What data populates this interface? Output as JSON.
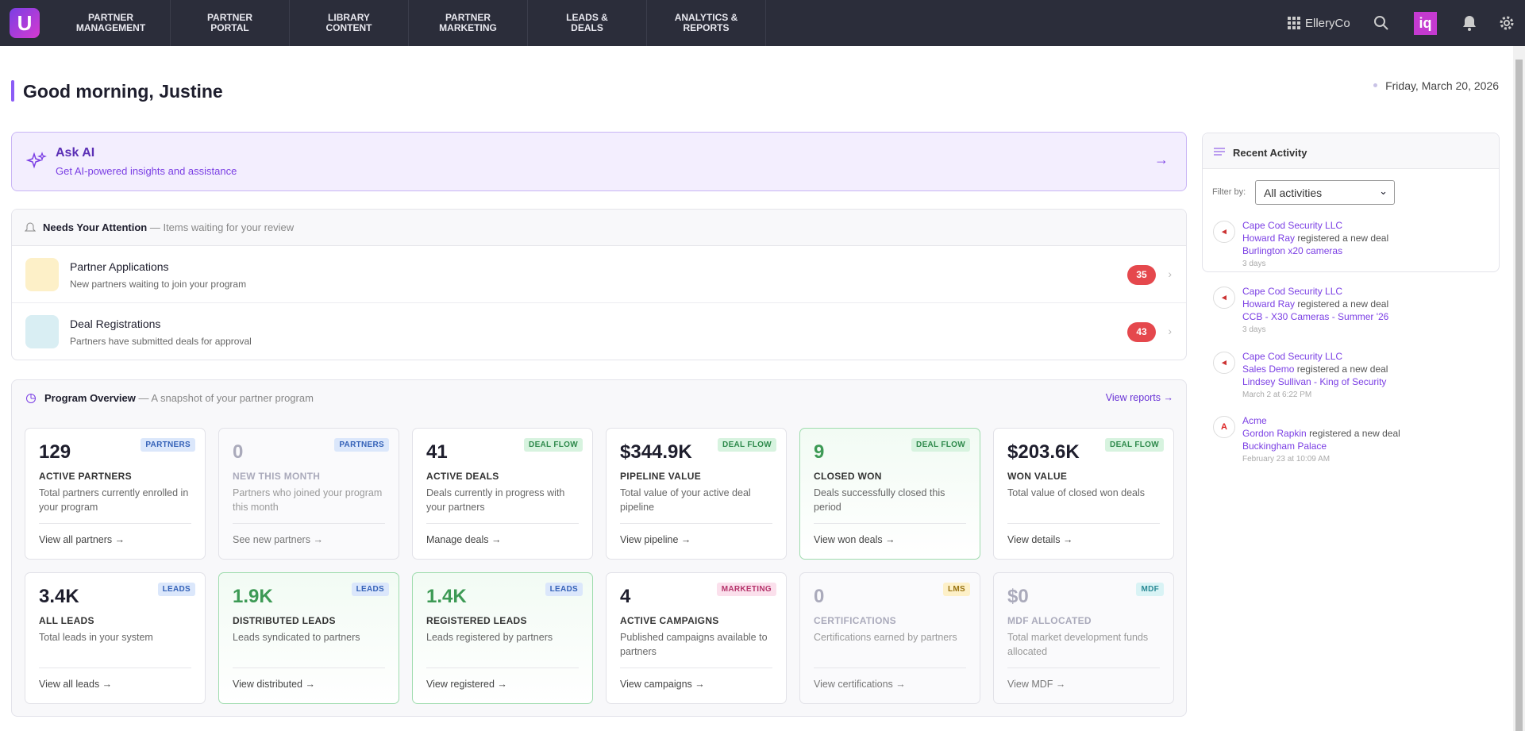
{
  "nav": {
    "items": [
      "PARTNER MANAGEMENT",
      "PARTNER PORTAL",
      "LIBRARY CONTENT",
      "PARTNER MARKETING",
      "LEADS & DEALS",
      "ANALYTICS & REPORTS"
    ],
    "org": "ElleryCo"
  },
  "greeting": "Good morning, Justine",
  "date": "Friday, March 20, 2026",
  "ask_ai": {
    "title": "Ask AI",
    "subtitle": "Get AI-powered insights and assistance"
  },
  "attention": {
    "title": "Needs Your Attention",
    "subtitle": "— Items waiting for your review",
    "items": [
      {
        "title": "Partner Applications",
        "desc": "New partners waiting to join your program",
        "count": 35
      },
      {
        "title": "Deal Registrations",
        "desc": "Partners have submitted deals for approval",
        "count": 43
      }
    ]
  },
  "overview": {
    "title": "Program Overview",
    "subtitle": "— A snapshot of your partner program",
    "link": "View reports →",
    "cards": [
      {
        "value": "129",
        "label": "ACTIVE PARTNERS",
        "badge": "PARTNERS",
        "desc": "Total partners currently enrolled in your program",
        "link": "View all partners →"
      },
      {
        "value": "0",
        "label": "NEW THIS MONTH",
        "badge": "PARTNERS",
        "desc": "Partners who joined your program this month",
        "link": "See new partners →"
      },
      {
        "value": "41",
        "label": "ACTIVE DEALS",
        "badge": "DEAL FLOW",
        "desc": "Deals currently in progress with your partners",
        "link": "Manage deals →"
      },
      {
        "value": "$344.9K",
        "label": "PIPELINE VALUE",
        "badge": "DEAL FLOW",
        "desc": "Total value of your active deal pipeline",
        "link": "View pipeline →"
      },
      {
        "value": "9",
        "label": "CLOSED WON",
        "badge": "DEAL FLOW",
        "desc": "Deals successfully closed this period",
        "link": "View won deals →"
      },
      {
        "value": "$203.6K",
        "label": "WON VALUE",
        "badge": "DEAL FLOW",
        "desc": "Total value of closed won deals",
        "link": "View details →"
      },
      {
        "value": "3.4K",
        "label": "ALL LEADS",
        "badge": "LEADS",
        "desc": "Total leads in your system",
        "link": "View all leads →"
      },
      {
        "value": "1.9K",
        "label": "DISTRIBUTED LEADS",
        "badge": "LEADS",
        "desc": "Leads syndicated to partners",
        "link": "View distributed →"
      },
      {
        "value": "1.4K",
        "label": "REGISTERED LEADS",
        "badge": "LEADS",
        "desc": "Leads registered by partners",
        "link": "View registered →"
      },
      {
        "value": "4",
        "label": "ACTIVE CAMPAIGNS",
        "badge": "MARKETING",
        "desc": "Published campaigns available to partners",
        "link": "View campaigns →"
      },
      {
        "value": "0",
        "label": "CERTIFICATIONS",
        "badge": "LMS",
        "desc": "Certifications earned by partners",
        "link": "View certifications →"
      },
      {
        "value": "$0",
        "label": "MDF ALLOCATED",
        "badge": "MDF",
        "desc": "Total market development funds allocated",
        "link": "View MDF →"
      }
    ]
  },
  "activity": {
    "title": "Recent Activity",
    "filter_label": "Filter by:",
    "filter_value": "All activities",
    "items": [
      {
        "company": "Cape Cod Security LLC",
        "person": "Howard Ray",
        "action": "registered a new deal",
        "deal": "Burlington x20 cameras",
        "time": "3 days"
      },
      {
        "company": "Cape Cod Security LLC",
        "person": "Howard Ray",
        "action": "registered a new deal",
        "deal": "CCB - X30 Cameras - Summer '26",
        "time": "3 days"
      },
      {
        "company": "Cape Cod Security LLC",
        "person": "Sales Demo",
        "action": "registered a new deal",
        "deal": "Lindsey Sullivan - King of Security",
        "time": "March 2 at 6:22 PM"
      },
      {
        "company": "Acme",
        "person": "Gordon Rapkin",
        "action": "registered a new deal",
        "deal": "Buckingham Palace",
        "time": "February 23 at 10:09 AM"
      }
    ]
  }
}
